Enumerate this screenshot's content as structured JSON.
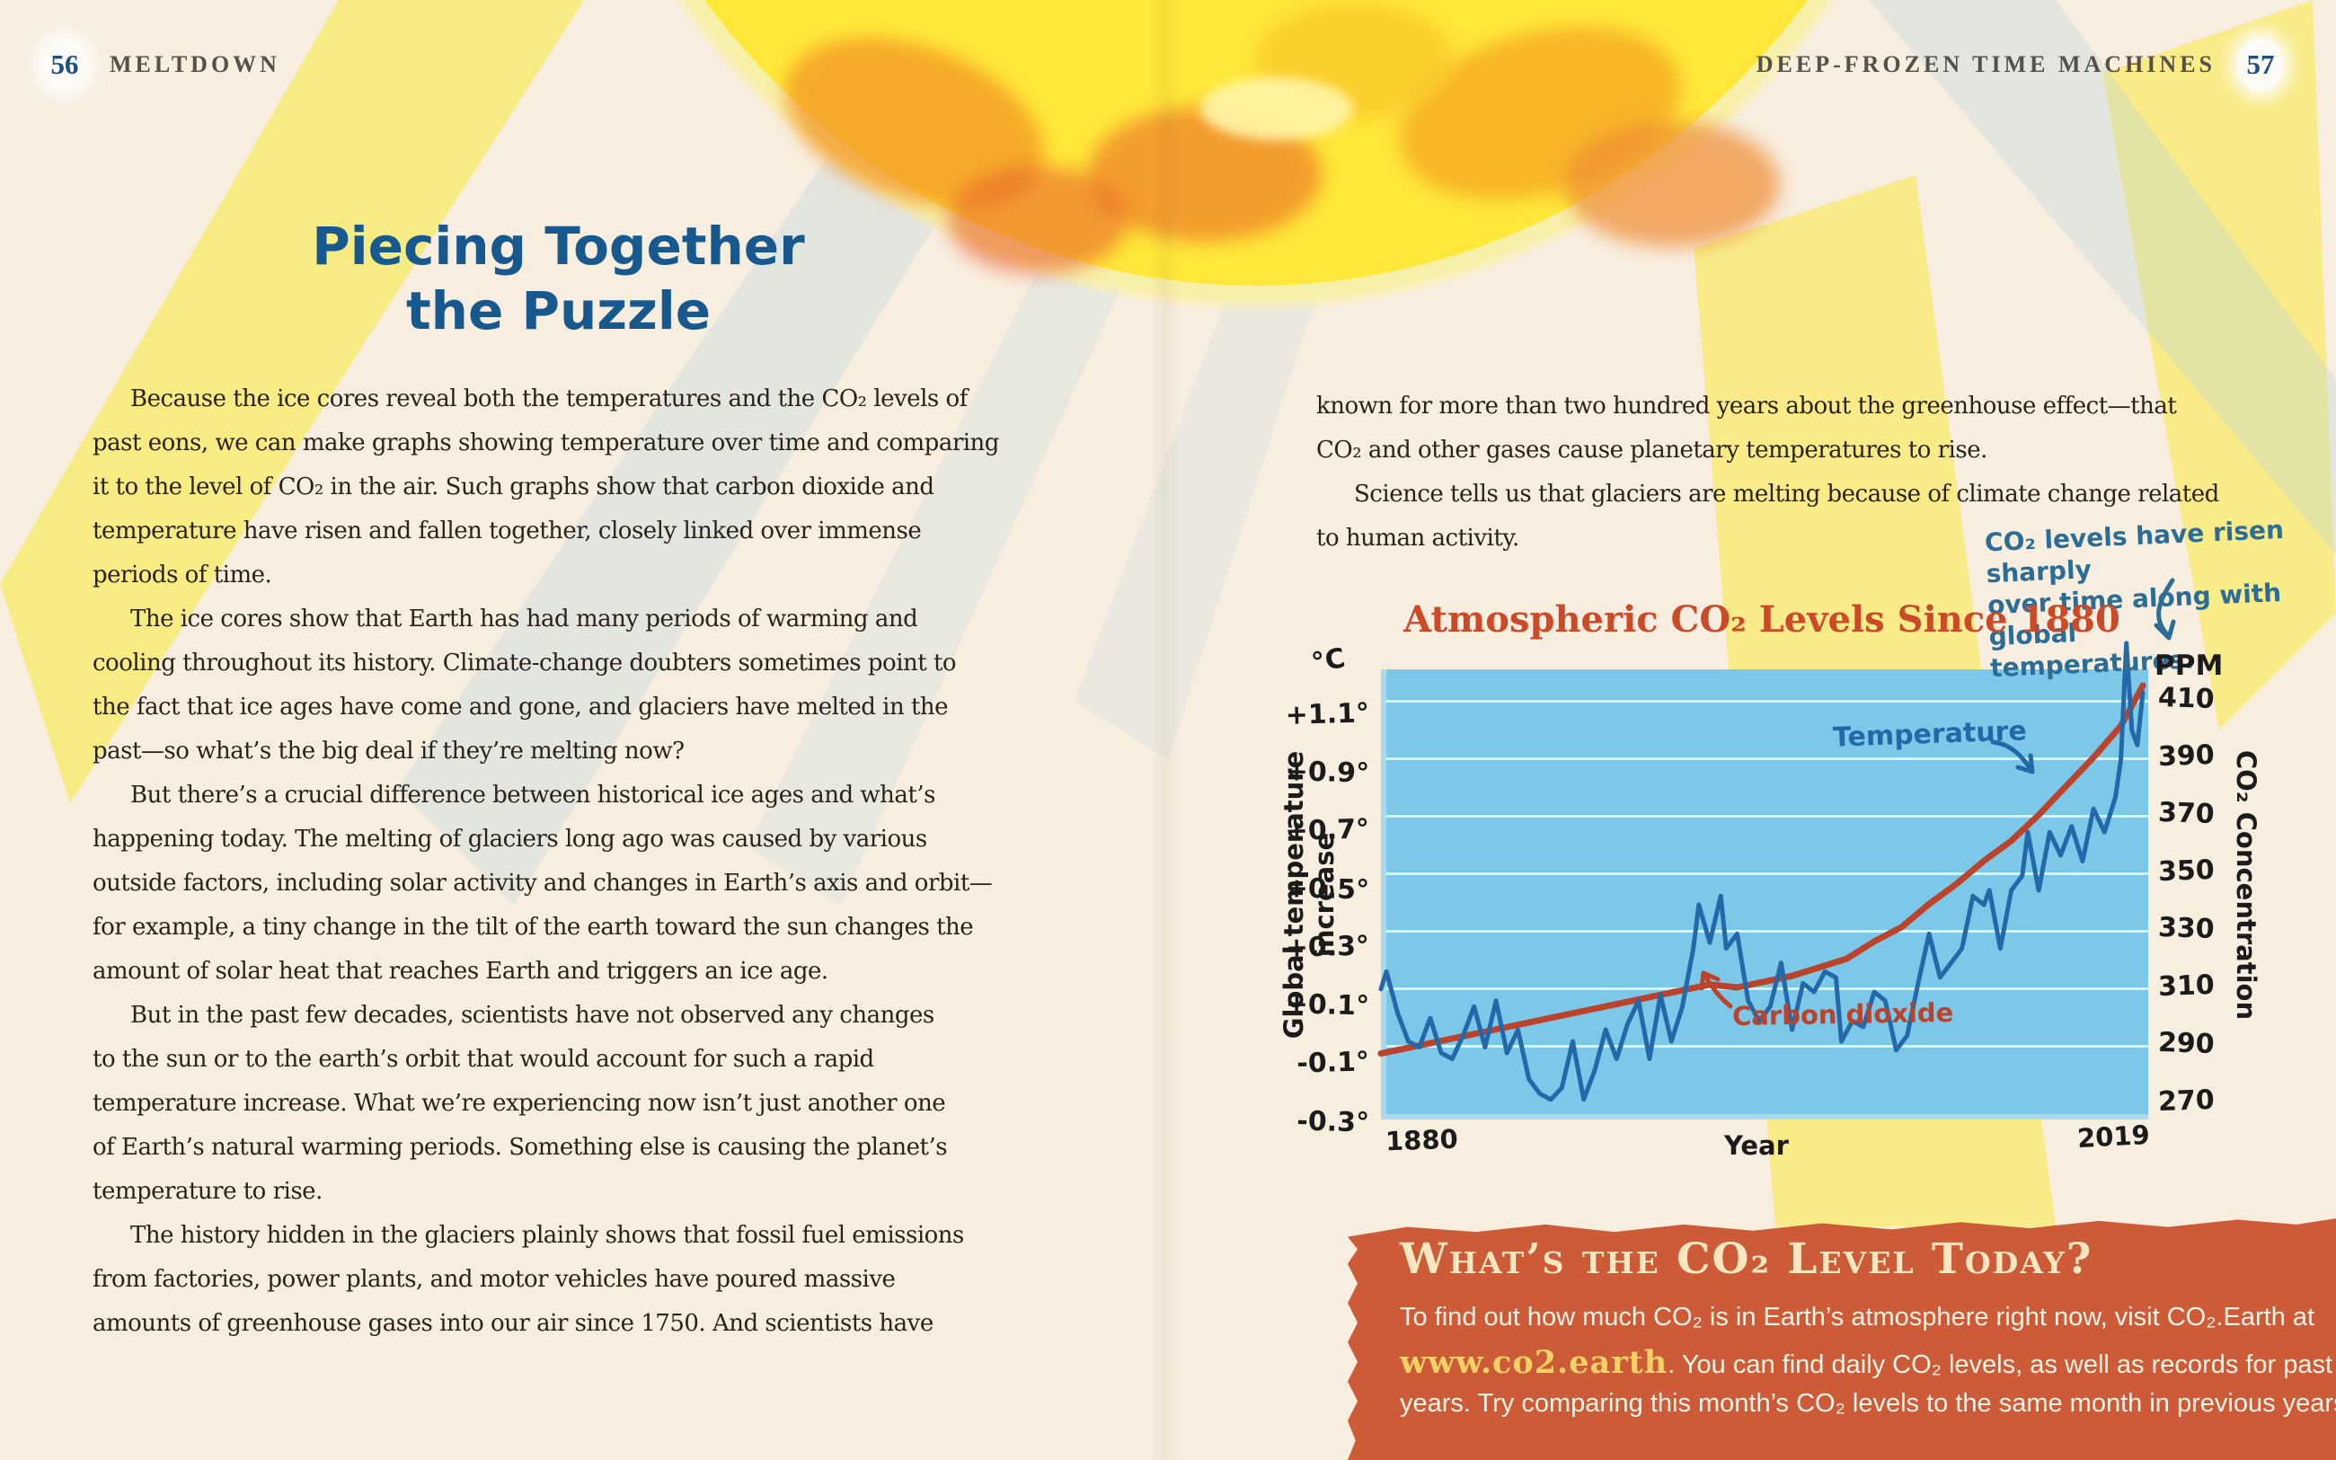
{
  "page_left": {
    "page_number": "56",
    "running_head": "MELTDOWN",
    "title_line1": "Piecing Together",
    "title_line2": "the Puzzle",
    "paragraphs": [
      {
        "indent": true,
        "lines": [
          "Because the ice cores reveal both the temperatures and the CO₂ levels of",
          "past eons, we can make graphs showing temperature over time and comparing",
          "it to the level of CO₂ in the air. Such graphs show that carbon dioxide and",
          "temperature have risen and fallen together, closely linked over immense",
          "periods of time."
        ]
      },
      {
        "indent": true,
        "lines": [
          "The ice cores show that Earth has had many periods of warming and",
          "cooling throughout its history. Climate-change doubters sometimes point to",
          "the fact that ice ages have come and gone, and glaciers have melted in the",
          "past—so what’s the big deal if they’re melting now?"
        ]
      },
      {
        "indent": true,
        "lines": [
          "But there’s a crucial difference between historical ice ages and what’s",
          "happening today. The melting of glaciers long ago was caused by various",
          "outside factors, including solar activity and changes in Earth’s axis and orbit—",
          "for example, a tiny change in the tilt of the earth toward the sun changes the",
          "amount of solar heat that reaches Earth and triggers an ice age."
        ]
      },
      {
        "indent": true,
        "lines": [
          "But in the past few decades, scientists have not observed any changes",
          "to the sun or to the earth’s orbit that would account for such a rapid",
          "temperature increase. What we’re experiencing now isn’t just another one",
          "of Earth’s natural warming periods. Something else is causing the planet’s",
          "temperature to rise."
        ]
      },
      {
        "indent": true,
        "lines": [
          "The history hidden in the glaciers plainly shows that fossil fuel emissions",
          "from factories, power plants, and motor vehicles have poured massive",
          "amounts of greenhouse gases into our air since 1750. And scientists have"
        ]
      }
    ]
  },
  "page_right": {
    "page_number": "57",
    "running_head": "DEEP-FROZEN TIME MACHINES",
    "paragraphs": [
      {
        "indent": false,
        "lines": [
          "known for more than two hundred years about the greenhouse effect—that",
          "CO₂ and other gases cause planetary temperatures to rise."
        ]
      },
      {
        "indent": true,
        "lines": [
          "Science tells us that glaciers are melting because of climate change related",
          "to human activity."
        ]
      }
    ],
    "annotation": {
      "lines": [
        "CO₂ levels have risen sharply",
        "over time along with global",
        "temperatures."
      ]
    },
    "callout": {
      "heading": "What’s the CO₂ Level Today?",
      "body_line1": "To find out how much CO₂ is in Earth’s atmosphere right now, visit CO₂.Earth at",
      "link": "www.co2.earth",
      "body_line2_rest": ". You can find daily CO₂ levels, as well as records for past",
      "body_line3": "years. Try comparing this month’s CO₂ levels to the same month in previous years."
    }
  },
  "chart_data": {
    "type": "line",
    "title": "Atmospheric CO₂ Levels Since 1880",
    "xlabel": "Year",
    "x_ticks": [
      "1880",
      "2019"
    ],
    "x_range": [
      1880,
      2019
    ],
    "grid": true,
    "left_axis": {
      "unit": "°C",
      "label": "Global temperature increase",
      "ticks": [
        "+1.1°",
        "+0.9°",
        "+0.7°",
        "+0.5°",
        "+0.3°",
        "+0.1°",
        "-0.1°",
        "-0.3°"
      ],
      "tick_values": [
        1.1,
        0.9,
        0.7,
        0.5,
        0.3,
        0.1,
        -0.1,
        -0.3
      ],
      "range": [
        -0.3,
        1.1
      ]
    },
    "right_axis": {
      "unit": "PPM",
      "label": "CO₂ Concentration",
      "ticks": [
        "410",
        "390",
        "370",
        "350",
        "330",
        "310",
        "290",
        "270"
      ],
      "tick_values": [
        410,
        390,
        370,
        350,
        330,
        310,
        290,
        270
      ],
      "range": [
        270,
        410
      ]
    },
    "series": [
      {
        "name": "Temperature",
        "axis": "left",
        "color": "#2368a8",
        "x": [
          1880,
          1881,
          1883,
          1885,
          1887,
          1889,
          1891,
          1893,
          1895,
          1897,
          1899,
          1901,
          1903,
          1905,
          1907,
          1909,
          1911,
          1913,
          1915,
          1917,
          1919,
          1921,
          1923,
          1925,
          1927,
          1929,
          1931,
          1933,
          1935,
          1937,
          1938,
          1940,
          1942,
          1943,
          1945,
          1947,
          1949,
          1951,
          1953,
          1955,
          1957,
          1959,
          1961,
          1963,
          1964,
          1966,
          1968,
          1970,
          1972,
          1974,
          1976,
          1978,
          1980,
          1982,
          1984,
          1986,
          1988,
          1990,
          1991,
          1993,
          1995,
          1997,
          1998,
          2000,
          2002,
          2004,
          2006,
          2008,
          2010,
          2012,
          2014,
          2015,
          2016,
          2017,
          2018,
          2019
        ],
        "values": [
          0.16,
          0.22,
          0.08,
          -0.02,
          -0.04,
          0.06,
          -0.06,
          -0.08,
          0.0,
          0.1,
          -0.04,
          0.12,
          -0.06,
          0.02,
          -0.15,
          -0.2,
          -0.22,
          -0.18,
          -0.02,
          -0.22,
          -0.12,
          0.02,
          -0.08,
          0.04,
          0.12,
          -0.08,
          0.14,
          -0.02,
          0.1,
          0.3,
          0.45,
          0.32,
          0.48,
          0.3,
          0.35,
          0.12,
          0.05,
          0.1,
          0.25,
          0.02,
          0.18,
          0.15,
          0.22,
          0.2,
          -0.02,
          0.05,
          0.03,
          0.15,
          0.12,
          -0.05,
          0.0,
          0.18,
          0.35,
          0.2,
          0.25,
          0.3,
          0.48,
          0.45,
          0.5,
          0.3,
          0.5,
          0.55,
          0.7,
          0.5,
          0.7,
          0.62,
          0.72,
          0.6,
          0.78,
          0.7,
          0.82,
          0.95,
          1.35,
          1.05,
          1.0,
          1.18
        ]
      },
      {
        "name": "Carbon dioxide",
        "axis": "right",
        "color": "#bc432b",
        "x": [
          1880,
          1890,
          1900,
          1910,
          1920,
          1930,
          1940,
          1945,
          1950,
          1955,
          1960,
          1965,
          1970,
          1975,
          1980,
          1985,
          1990,
          1995,
          2000,
          2005,
          2010,
          2015,
          2019
        ],
        "values": [
          287,
          291,
          295,
          299,
          303,
          307,
          311,
          310,
          312,
          314,
          317,
          320,
          326,
          331,
          339,
          346,
          354,
          361,
          370,
          380,
          390,
          401,
          415
        ]
      }
    ],
    "legend_position": "annotated-on-plot"
  },
  "colors": {
    "page_bg": "#f8eee0",
    "ink": "#2b2218",
    "head_ink": "#55504a",
    "title_blue": "#17598f",
    "chart_title": "#cc4a28",
    "plot_bg": "#7cc8e9",
    "temp_line": "#2368a8",
    "co2_line": "#bc432b",
    "annotation": "#2b6d96",
    "callout_bg": "#cd5b38",
    "callout_heading": "#f8e7c0",
    "callout_link": "#f2d264",
    "ray_yellow": "#f7ea72",
    "ray_blue": "#b9d8dd"
  }
}
